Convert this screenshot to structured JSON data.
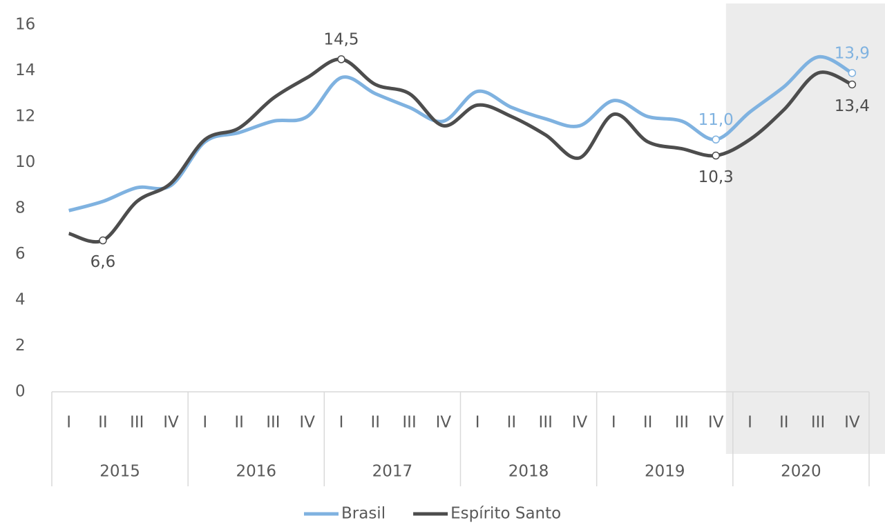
{
  "chart_data": {
    "type": "line",
    "categories": [
      "I",
      "II",
      "III",
      "IV",
      "I",
      "II",
      "III",
      "IV",
      "I",
      "II",
      "III",
      "IV",
      "I",
      "II",
      "III",
      "IV",
      "I",
      "II",
      "III",
      "IV",
      "I",
      "II",
      "III",
      "IV"
    ],
    "category_groups": [
      "2015",
      "2016",
      "2017",
      "2018",
      "2019",
      "2020"
    ],
    "shaded_group": "2020",
    "shade_color": "#ececec",
    "series": [
      {
        "name": "Brasil",
        "color": "#7fb2e0",
        "values": [
          7.9,
          8.3,
          8.9,
          9.0,
          10.9,
          11.3,
          11.8,
          12.0,
          13.7,
          13.0,
          12.4,
          11.8,
          13.1,
          12.4,
          11.9,
          11.6,
          12.7,
          12.0,
          11.8,
          11.0,
          12.2,
          13.3,
          14.6,
          13.9
        ],
        "value_labels": [
          null,
          null,
          null,
          null,
          null,
          null,
          null,
          null,
          null,
          null,
          null,
          null,
          null,
          null,
          null,
          null,
          null,
          null,
          null,
          "11,0",
          null,
          null,
          null,
          "13,9"
        ]
      },
      {
        "name": "Espírito Santo",
        "color": "#4d4d4d",
        "values": [
          6.9,
          6.6,
          8.3,
          9.1,
          11.0,
          11.5,
          12.8,
          13.7,
          14.5,
          13.4,
          13.0,
          11.6,
          12.5,
          12.0,
          11.2,
          10.2,
          12.1,
          10.9,
          10.6,
          10.3,
          11.0,
          12.3,
          13.9,
          13.4
        ],
        "value_labels": [
          null,
          "6,6",
          null,
          null,
          null,
          null,
          null,
          null,
          "14,5",
          null,
          null,
          null,
          null,
          null,
          null,
          null,
          null,
          null,
          null,
          "10,3",
          null,
          null,
          null,
          "13,4"
        ]
      }
    ],
    "ylim": [
      0,
      16
    ],
    "yticks": [
      0,
      2,
      4,
      6,
      8,
      10,
      12,
      14,
      16
    ],
    "grid": false,
    "legend": "bottom"
  }
}
